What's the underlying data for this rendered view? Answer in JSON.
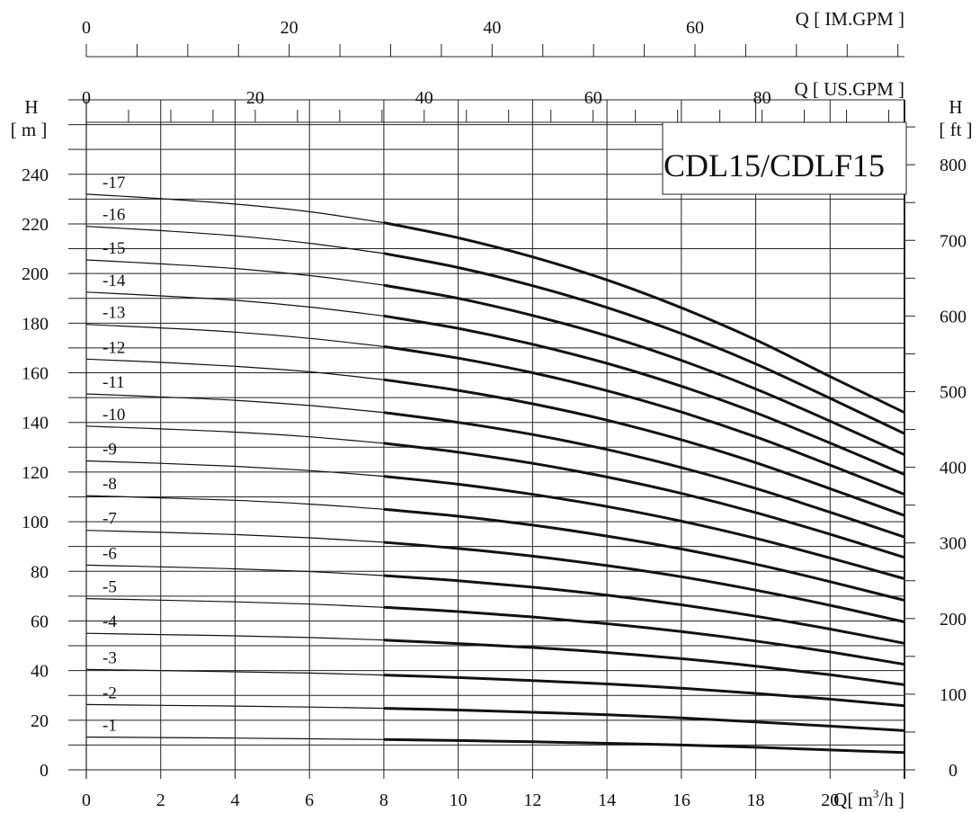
{
  "chart_data": {
    "type": "line",
    "title": "CDL15/CDLF15",
    "x_axis": {
      "label_prefix": "Q",
      "label_unit": "[ m",
      "label_sup": "3",
      "label_end": "/h ]",
      "range": [
        0,
        22
      ],
      "ticks": [
        "0",
        "2",
        "4",
        "6",
        "8",
        "10",
        "12",
        "14",
        "16",
        "18",
        "20"
      ]
    },
    "top_axis_us": {
      "label": "Q  [ US.GPM ]",
      "range": [
        0,
        96.86
      ],
      "ticks": [
        "0",
        "20",
        "40",
        "60",
        "80"
      ]
    },
    "top_axis_im": {
      "label": "Q  [ IM.GPM ]",
      "range": [
        0,
        80.65
      ],
      "ticks": [
        "0",
        "20",
        "40",
        "60"
      ]
    },
    "left_axis": {
      "label_top": "H",
      "label_unit": "[ m ]",
      "range": [
        0,
        270
      ],
      "ticks": [
        "0",
        "20",
        "40",
        "60",
        "80",
        "100",
        "120",
        "140",
        "160",
        "180",
        "200",
        "220",
        "240"
      ]
    },
    "right_axis": {
      "label_top": "H",
      "label_unit": "[ ft ]",
      "range": [
        0,
        885.8
      ],
      "ticks": [
        "0",
        "100",
        "200",
        "300",
        "400",
        "500",
        "600",
        "700",
        "800"
      ]
    },
    "grid": true,
    "operating_range_q": [
      8,
      22
    ],
    "x": [
      0,
      2,
      4,
      6,
      8,
      10,
      12,
      14,
      16,
      18,
      20,
      22
    ],
    "series": [
      {
        "name": "-1",
        "values": [
          13.2,
          13.0,
          12.8,
          12.5,
          12.2,
          11.8,
          11.3,
          10.7,
          10.0,
          9.1,
          8.0,
          7.0
        ]
      },
      {
        "name": "-2",
        "values": [
          26.3,
          26.0,
          25.7,
          25.3,
          24.8,
          24.1,
          23.2,
          22.2,
          20.9,
          19.3,
          17.6,
          15.8
        ]
      },
      {
        "name": "-3",
        "values": [
          40.5,
          40.0,
          39.5,
          39.0,
          38.2,
          37.2,
          36.0,
          34.6,
          32.9,
          30.8,
          28.5,
          25.8
        ]
      },
      {
        "name": "-4",
        "values": [
          55.0,
          54.5,
          54.0,
          53.3,
          52.3,
          50.9,
          49.3,
          47.3,
          44.8,
          41.8,
          38.3,
          34.3
        ]
      },
      {
        "name": "-5",
        "values": [
          69.0,
          68.4,
          67.7,
          66.8,
          65.5,
          63.8,
          61.6,
          58.9,
          55.7,
          51.9,
          47.5,
          42.5
        ]
      },
      {
        "name": "-6",
        "values": [
          82.5,
          81.8,
          81.0,
          79.9,
          78.3,
          76.2,
          73.6,
          70.4,
          66.5,
          61.9,
          56.7,
          51.0
        ]
      },
      {
        "name": "-7",
        "values": [
          96.5,
          95.7,
          94.8,
          93.5,
          91.7,
          89.2,
          86.1,
          82.3,
          77.8,
          72.4,
          66.3,
          59.6
        ]
      },
      {
        "name": "-8",
        "values": [
          110.5,
          109.6,
          108.6,
          107.1,
          105.0,
          102.2,
          98.6,
          94.2,
          89.0,
          82.9,
          75.8,
          68.3
        ]
      },
      {
        "name": "-9",
        "values": [
          124.5,
          123.5,
          122.3,
          120.6,
          118.3,
          115.1,
          111.0,
          106.1,
          100.2,
          93.3,
          85.4,
          77.0
        ]
      },
      {
        "name": "-10",
        "values": [
          138.5,
          137.4,
          136.1,
          134.2,
          131.6,
          128.0,
          123.5,
          118.0,
          111.4,
          103.7,
          94.9,
          85.6
        ]
      },
      {
        "name": "-11",
        "values": [
          151.5,
          150.3,
          148.9,
          146.8,
          144.0,
          140.0,
          135.1,
          129.1,
          121.8,
          113.4,
          103.8,
          93.8
        ]
      },
      {
        "name": "-12",
        "values": [
          165.5,
          164.2,
          162.6,
          160.4,
          157.2,
          152.9,
          147.5,
          140.9,
          133.0,
          123.8,
          113.3,
          102.5
        ]
      },
      {
        "name": "-13",
        "values": [
          179.5,
          178.1,
          176.4,
          173.9,
          170.6,
          165.9,
          160.0,
          152.8,
          144.2,
          134.2,
          122.8,
          111.0
        ]
      },
      {
        "name": "-14",
        "values": [
          192.5,
          191.0,
          189.2,
          186.5,
          182.9,
          177.9,
          171.5,
          163.8,
          154.6,
          143.9,
          131.7,
          119.0
        ]
      },
      {
        "name": "-15",
        "values": [
          205.5,
          203.9,
          202.0,
          199.2,
          195.3,
          190.0,
          183.1,
          174.9,
          165.0,
          153.5,
          140.5,
          127.0
        ]
      },
      {
        "name": "-16",
        "values": [
          219.0,
          217.3,
          215.2,
          212.2,
          208.1,
          202.4,
          195.1,
          186.3,
          175.8,
          163.6,
          149.7,
          135.5
        ]
      },
      {
        "name": "-17",
        "values": [
          232.0,
          230.2,
          228.0,
          224.9,
          220.5,
          214.4,
          206.7,
          197.4,
          186.2,
          173.3,
          158.5,
          144.0
        ]
      }
    ]
  }
}
